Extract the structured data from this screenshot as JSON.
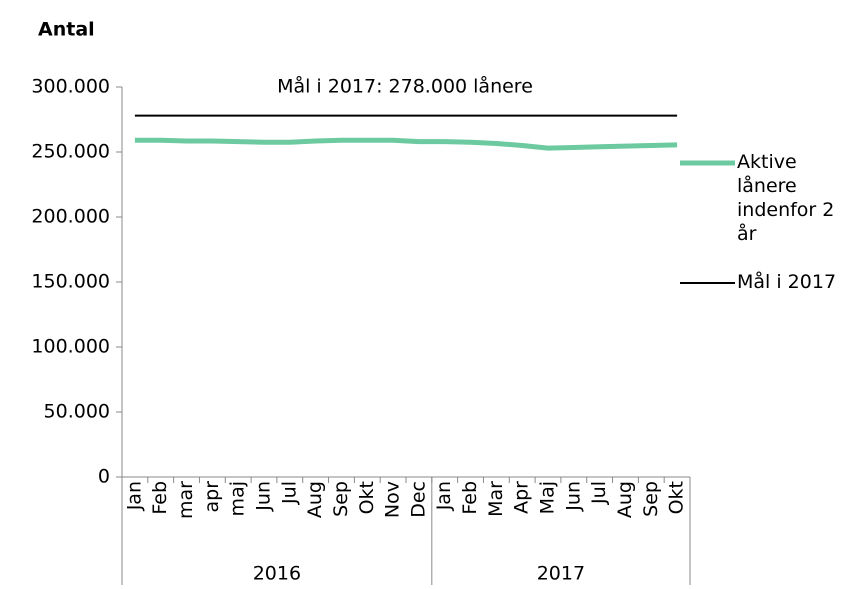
{
  "chart_data": {
    "type": "line",
    "title": "Antal",
    "annotation": "Mål i 2017: 278.000 lånere",
    "groups": [
      {
        "name": "2016",
        "months": [
          "Jan",
          "Feb",
          "mar",
          "apr",
          "maj",
          "Jun",
          "Jul",
          "Aug",
          "Sep",
          "Okt",
          "Nov",
          "Dec"
        ]
      },
      {
        "name": "2017",
        "months": [
          "Jan",
          "Feb",
          "Mar",
          "Apr",
          "Maj",
          "Jun",
          "Jul",
          "Aug",
          "Sep",
          "Okt"
        ]
      }
    ],
    "series": [
      {
        "name": "Aktive lånere indenfor 2 år",
        "color": "#6cc9a0",
        "width": 5,
        "values": [
          259000,
          259000,
          258500,
          258500,
          258000,
          257500,
          257500,
          258500,
          259000,
          259000,
          259000,
          258000,
          258000,
          257500,
          256500,
          255000,
          253000,
          253500,
          254000,
          254500,
          255000,
          255500
        ]
      },
      {
        "name": "Mål i 2017",
        "color": "#000000",
        "width": 2,
        "values": [
          278000,
          278000,
          278000,
          278000,
          278000,
          278000,
          278000,
          278000,
          278000,
          278000,
          278000,
          278000,
          278000,
          278000,
          278000,
          278000,
          278000,
          278000,
          278000,
          278000,
          278000,
          278000
        ]
      }
    ],
    "ylim": [
      0,
      300000
    ],
    "yticks": [
      0,
      {
        "value": 50000,
        "label": "50.000"
      },
      {
        "value": 100000,
        "label": "100.000"
      },
      {
        "value": 150000,
        "label": "150.000"
      },
      {
        "value": 200000,
        "label": "200.000"
      },
      {
        "value": 250000,
        "label": "250.000"
      },
      {
        "value": 300000,
        "label": "300.000"
      }
    ],
    "grid": false,
    "legend": "right"
  }
}
